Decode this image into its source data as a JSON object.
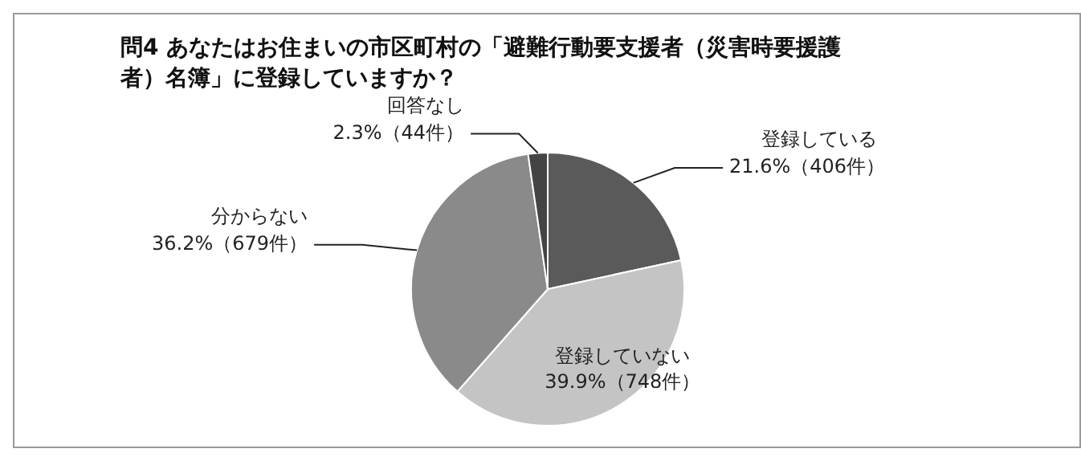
{
  "chart_data": {
    "type": "pie",
    "title": "問4 あなたはお住まいの市区町村の「避難行動要支援者（災害時要援護者）名簿」に登録していますか？",
    "categories": [
      "登録している",
      "登録していない",
      "分からない",
      "回答なし"
    ],
    "values": [
      21.6,
      39.9,
      36.2,
      2.3
    ],
    "value_labels": [
      "21.6%（406件）",
      "39.9%（748件）",
      "36.2%（679件）",
      "2.3%（44件）"
    ],
    "colors": [
      "#5a5a5a",
      "#c4c4c4",
      "#8a8a8a",
      "#444444"
    ]
  }
}
